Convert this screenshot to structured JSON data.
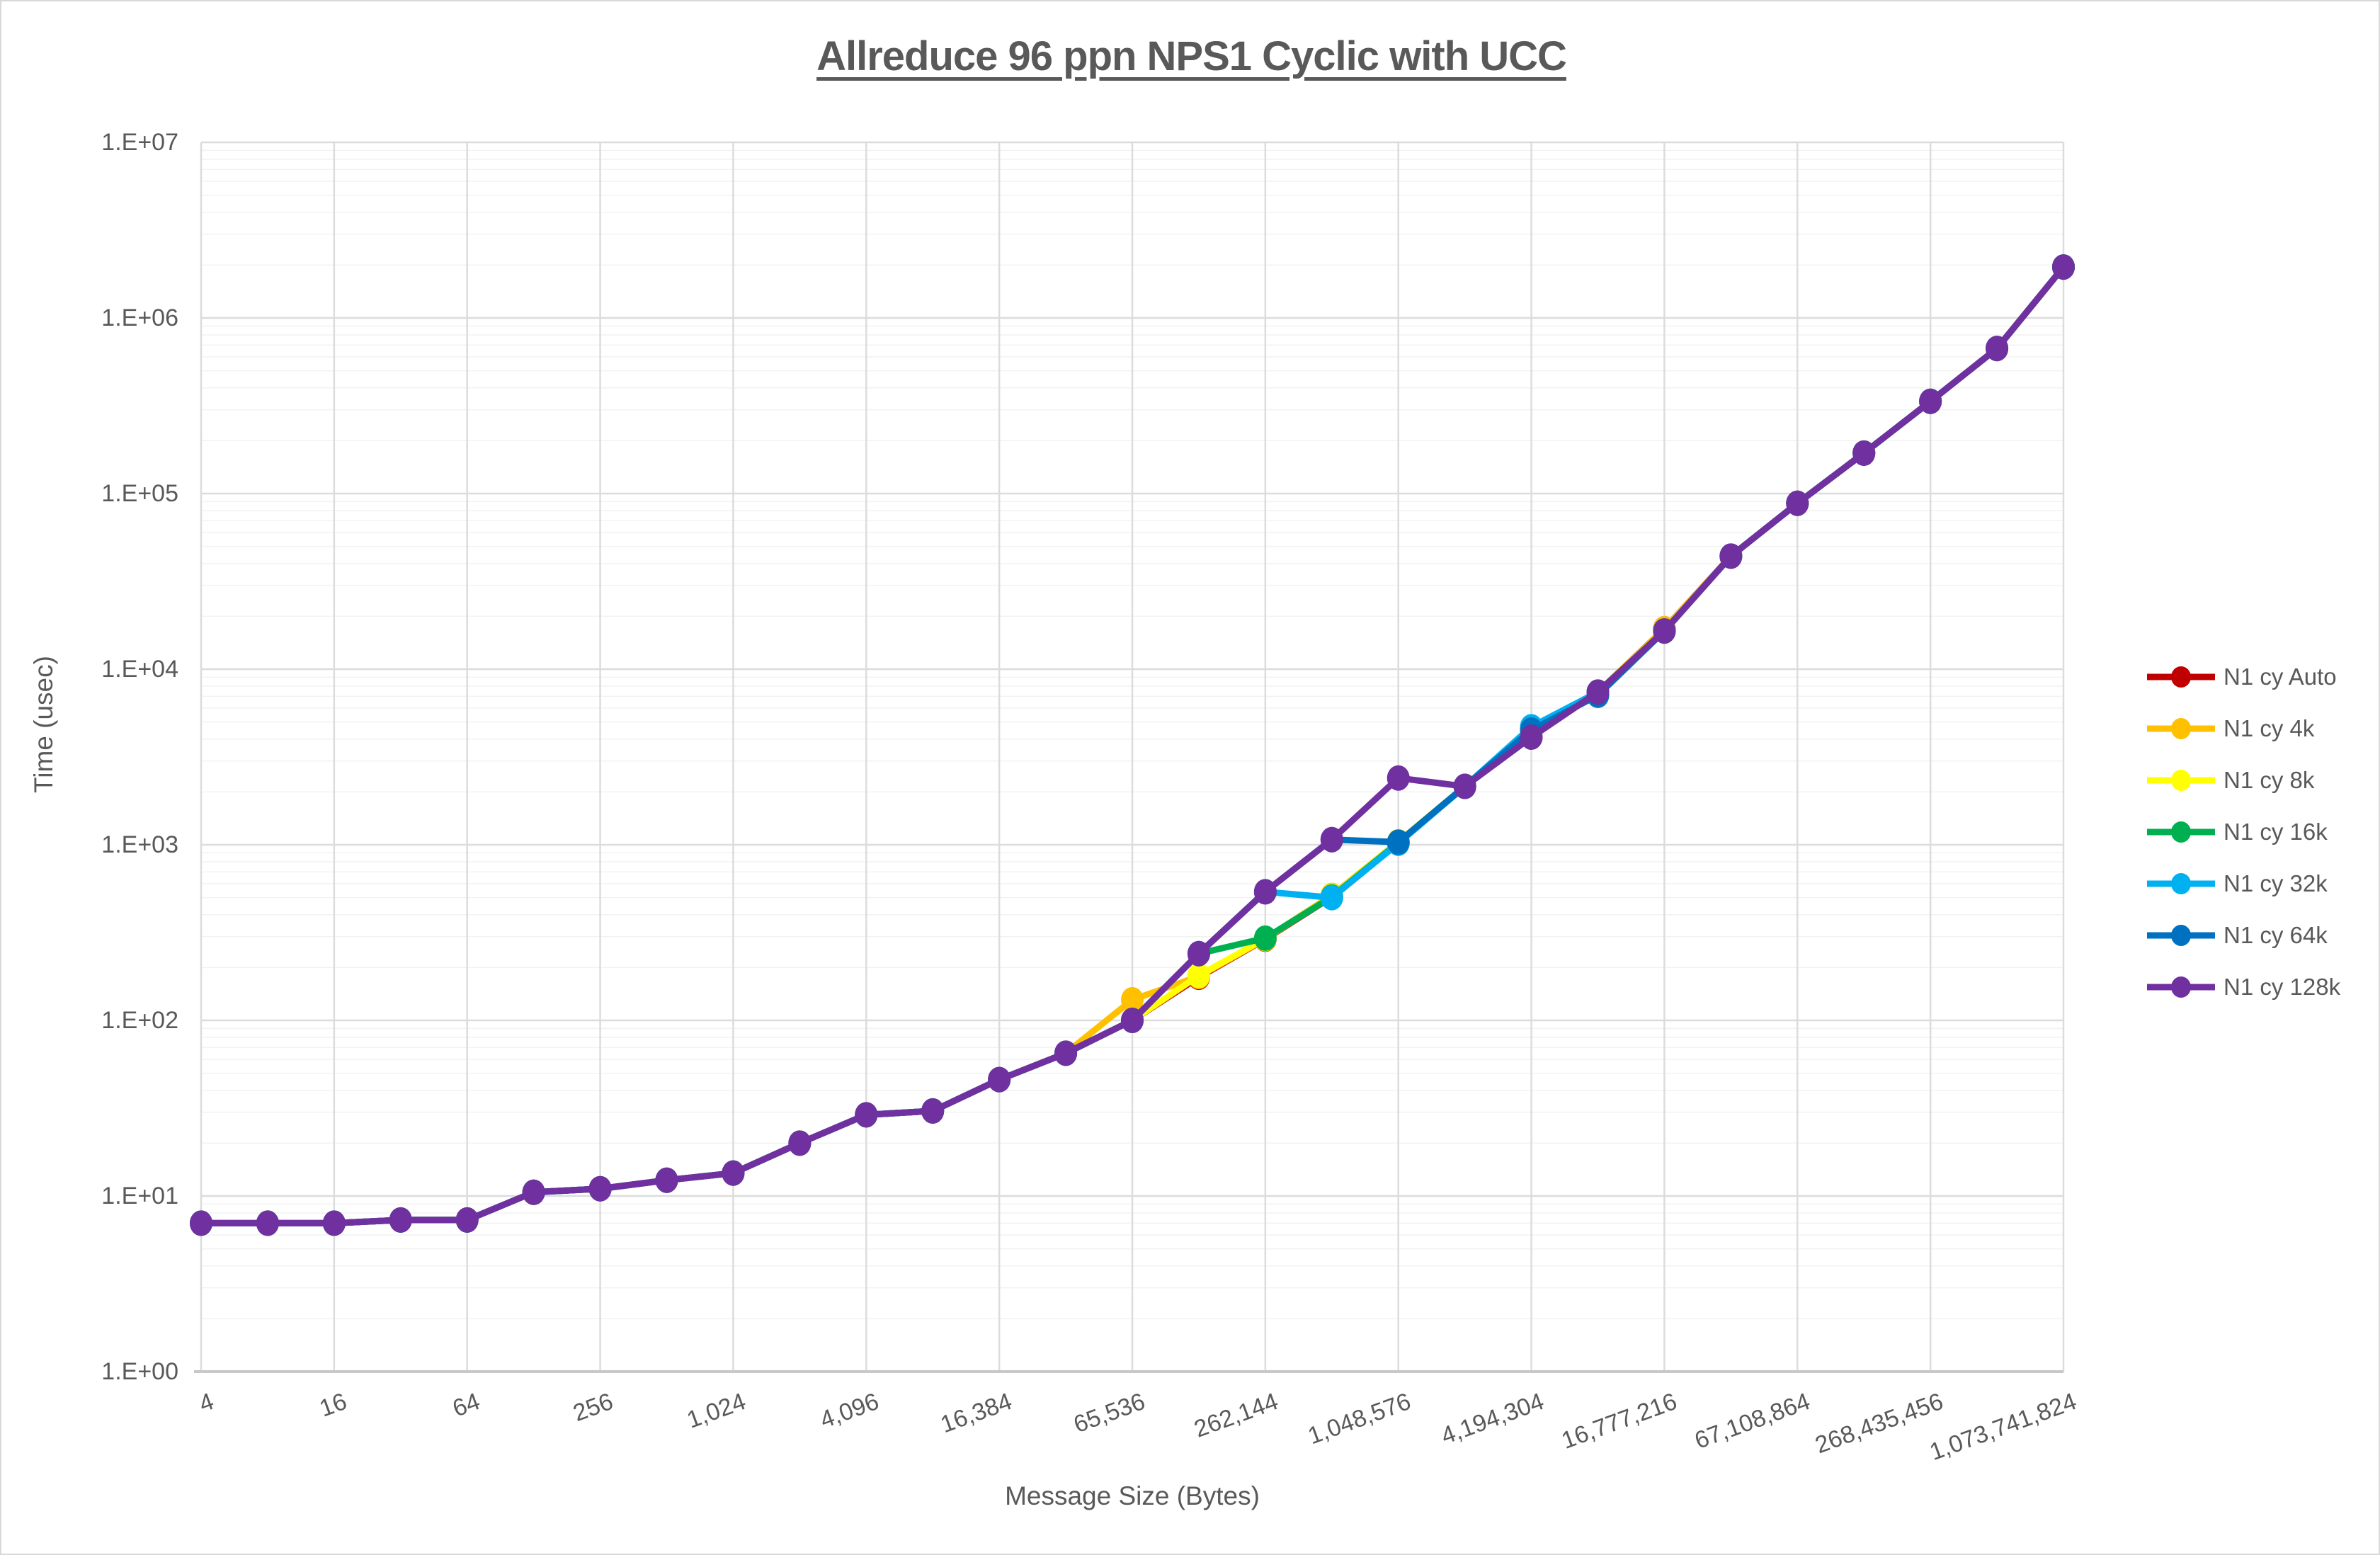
{
  "title": "Allreduce 96 ppn NPS1 Cyclic with UCC",
  "y_axis": {
    "label": "Time (usec)",
    "ticks": [
      "1.E+00",
      "1.E+01",
      "1.E+02",
      "1.E+03",
      "1.E+04",
      "1.E+05",
      "1.E+06",
      "1.E+07"
    ]
  },
  "x_axis": {
    "label": "Message Size (Bytes)",
    "ticks": [
      "4",
      "16",
      "64",
      "256",
      "1,024",
      "4,096",
      "16,384",
      "65,536",
      "262,144",
      "1,048,576",
      "4,194,304",
      "16,777,216",
      "67,108,864",
      "268,435,456",
      "1,073,741,824"
    ]
  },
  "colors": {
    "grid_major": "#dcdcdc",
    "grid_minor": "#f2f2f2",
    "axis_line": "#c8c8c8",
    "text": "#595959"
  },
  "chart_data": {
    "type": "line",
    "x_scale": "log2",
    "y_scale": "log10",
    "title": "Allreduce 96 ppn NPS1 Cyclic with UCC",
    "xlabel": "Message Size (Bytes)",
    "ylabel": "Time (usec)",
    "xlim": [
      4,
      1073741824
    ],
    "ylim": [
      1,
      10000000
    ],
    "grid": true,
    "legend_position": "right",
    "x": [
      4,
      8,
      16,
      32,
      64,
      128,
      256,
      512,
      1024,
      2048,
      4096,
      8192,
      16384,
      32768,
      65536,
      131072,
      262144,
      524288,
      1048576,
      2097152,
      4194304,
      8388608,
      16777216,
      33554432,
      67108864,
      134217728,
      268435456,
      536870912,
      1073741824
    ],
    "series": [
      {
        "name": "N1 cy Auto",
        "color": "#C00000",
        "values": [
          7,
          7,
          7,
          7.3,
          7.3,
          10.5,
          11,
          12.3,
          13.5,
          20,
          29,
          30.5,
          46,
          65,
          100,
          176,
          290,
          505,
          1030,
          2150,
          4500,
          7400,
          17000,
          44000,
          88000,
          170000,
          335000,
          670000,
          1950000
        ]
      },
      {
        "name": "N1 cy 4k",
        "color": "#FFC000",
        "values": [
          7,
          7,
          7,
          7.3,
          7.3,
          10.5,
          11,
          12.3,
          13.5,
          20,
          29,
          30.5,
          46,
          65,
          131,
          178,
          292,
          515,
          1040,
          2150,
          4500,
          7400,
          17000,
          44000,
          88000,
          170000,
          335000,
          670000,
          1950000
        ]
      },
      {
        "name": "N1 cy 8k",
        "color": "#FFFF00",
        "values": [
          7,
          7,
          7,
          7.3,
          7.3,
          10.5,
          11,
          12.3,
          13.5,
          20,
          29,
          30.5,
          46,
          65,
          100,
          180,
          292,
          510,
          1040,
          2150,
          4500,
          7400,
          16500,
          44000,
          88000,
          170000,
          335000,
          670000,
          1950000
        ]
      },
      {
        "name": "N1 cy 16k",
        "color": "#00B050",
        "values": [
          7,
          7,
          7,
          7.3,
          7.3,
          10.5,
          11,
          12.3,
          13.5,
          20,
          29,
          30.5,
          46,
          65,
          100,
          240,
          294,
          505,
          1030,
          2150,
          4500,
          7400,
          16500,
          44000,
          88000,
          170000,
          335000,
          670000,
          1950000
        ]
      },
      {
        "name": "N1 cy 32k",
        "color": "#00B0F0",
        "values": [
          7,
          7,
          7,
          7.3,
          7.3,
          10.5,
          11,
          12.3,
          13.5,
          20,
          29,
          30.5,
          46,
          65,
          100,
          240,
          540,
          500,
          1020,
          2150,
          4700,
          7400,
          16500,
          44000,
          88000,
          170000,
          335000,
          670000,
          1950000
        ]
      },
      {
        "name": "N1 cy 64k",
        "color": "#0070C0",
        "values": [
          7,
          7,
          7,
          7.3,
          7.3,
          10.5,
          11,
          12.3,
          13.5,
          20,
          29,
          30.5,
          46,
          65,
          100,
          240,
          540,
          1070,
          1035,
          2150,
          4500,
          7100,
          16500,
          44000,
          88000,
          170000,
          335000,
          670000,
          1950000
        ]
      },
      {
        "name": "N1 cy 128k",
        "color": "#7030A0",
        "values": [
          7,
          7,
          7,
          7.3,
          7.3,
          10.5,
          11,
          12.3,
          13.5,
          20,
          29,
          30.5,
          46,
          65,
          100,
          240,
          540,
          1070,
          2400,
          2150,
          4100,
          7400,
          16500,
          44000,
          88000,
          170000,
          335000,
          670000,
          1950000
        ]
      }
    ]
  }
}
